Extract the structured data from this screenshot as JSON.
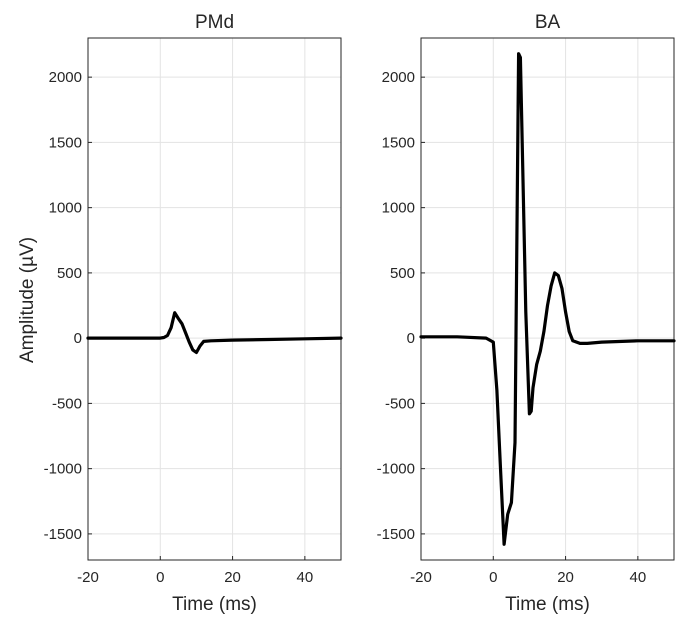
{
  "shared": {
    "ylabel": "Amplitude (µV)",
    "xlabel": "Time (ms)",
    "xlim": [
      -20,
      50
    ],
    "ylim": [
      -1700,
      2300
    ],
    "xticks": [
      -20,
      0,
      20,
      40
    ],
    "yticks": [
      -1500,
      -1000,
      -500,
      0,
      500,
      1000,
      1500,
      2000
    ],
    "grid": true,
    "line_color": "#000000"
  },
  "chart_data": [
    {
      "type": "line",
      "title": "PMd",
      "xlabel": "Time (ms)",
      "ylabel": "Amplitude (µV)",
      "xlim": [
        -20,
        50
      ],
      "ylim": [
        -1700,
        2300
      ],
      "x": [
        -20,
        -10,
        0,
        1,
        2,
        3,
        4,
        5,
        6,
        7,
        8,
        9,
        10,
        11,
        12,
        14,
        20,
        30,
        40,
        50
      ],
      "y": [
        0,
        0,
        0,
        5,
        20,
        80,
        195,
        150,
        110,
        40,
        -30,
        -90,
        -110,
        -60,
        -25,
        -20,
        -15,
        -10,
        -5,
        0
      ]
    },
    {
      "type": "line",
      "title": "BA",
      "xlabel": "Time (ms)",
      "ylabel": "",
      "xlim": [
        -20,
        50
      ],
      "ylim": [
        -1700,
        2300
      ],
      "x": [
        -20,
        -10,
        -2,
        0,
        1,
        2,
        3,
        4,
        5,
        6,
        7,
        7.5,
        8,
        9,
        10,
        10.5,
        11,
        12,
        13,
        14,
        15,
        16,
        17,
        18,
        19,
        20,
        21,
        22,
        24,
        26,
        30,
        40,
        50
      ],
      "y": [
        10,
        10,
        0,
        -30,
        -400,
        -1000,
        -1580,
        -1350,
        -1260,
        -800,
        2180,
        2150,
        1500,
        200,
        -580,
        -560,
        -380,
        -200,
        -100,
        50,
        250,
        400,
        500,
        480,
        380,
        200,
        50,
        -20,
        -40,
        -40,
        -30,
        -20,
        -20
      ]
    }
  ]
}
